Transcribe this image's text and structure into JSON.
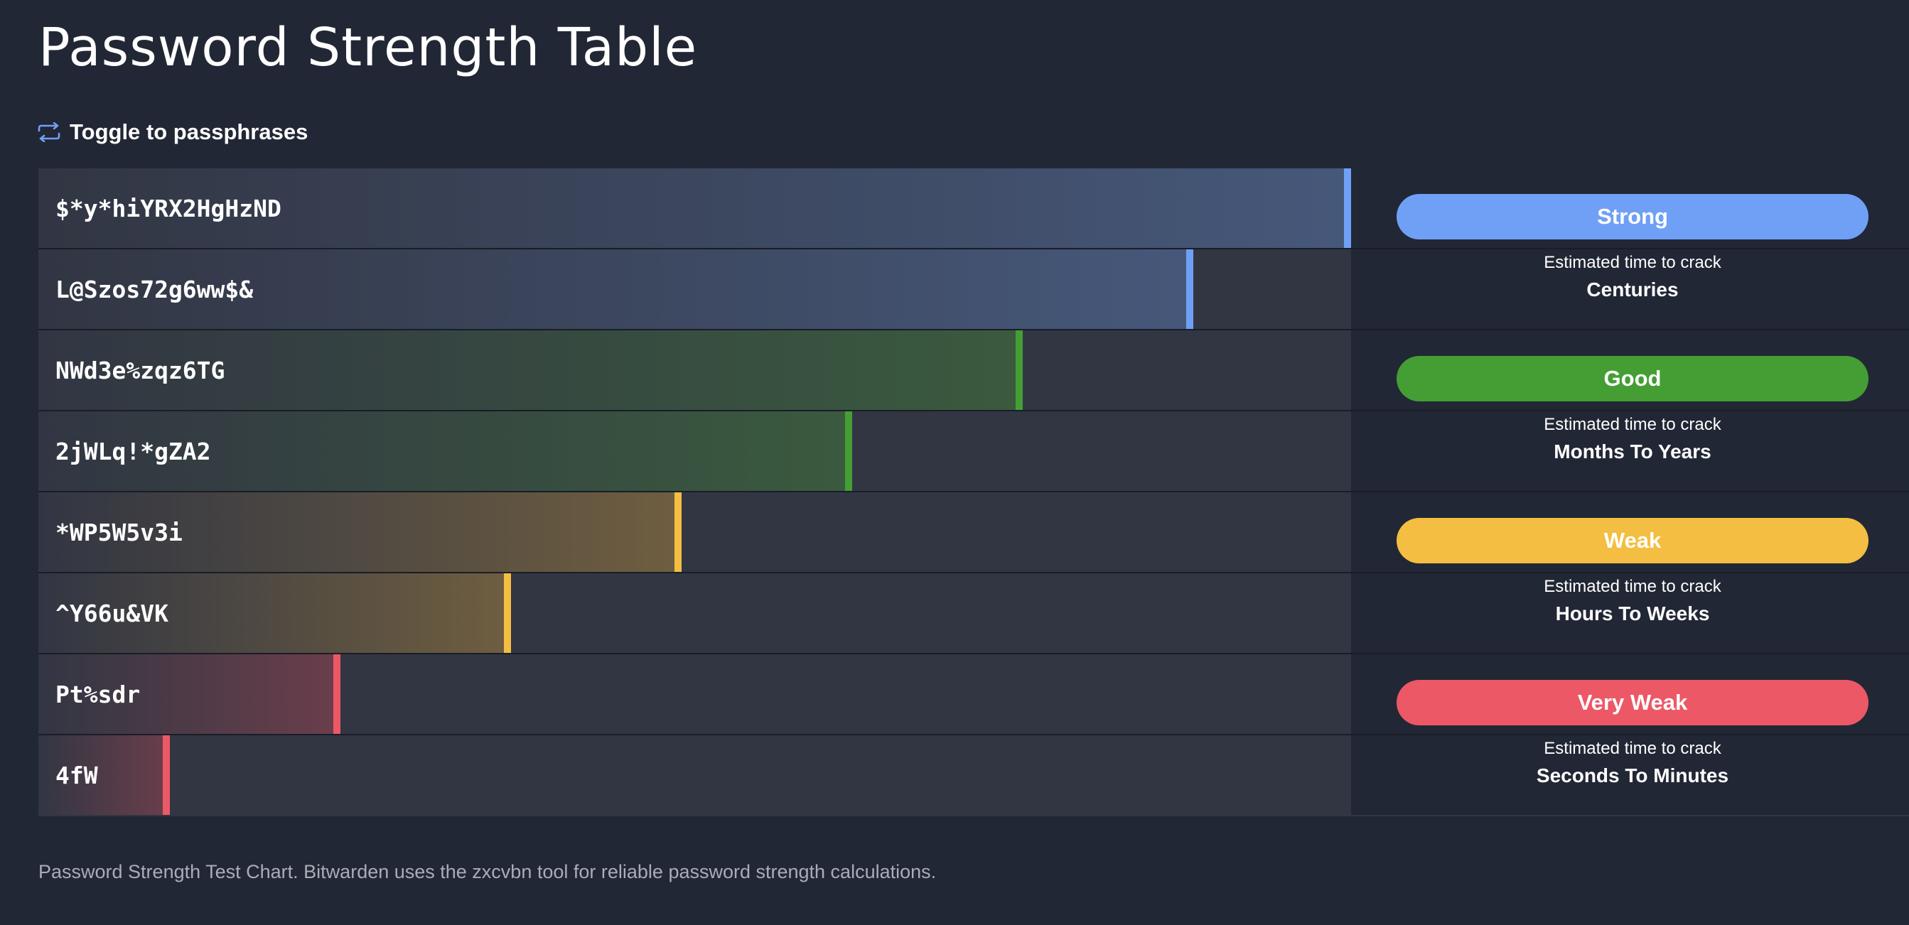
{
  "title": "Password Strength Table",
  "toggle": {
    "label": "Toggle to passphrases",
    "icon": "swap-arrows-icon",
    "color": "#6fa0f5"
  },
  "chart_data": {
    "type": "bar",
    "orientation": "horizontal",
    "categories": [
      "$*y*hiYRX2HgHzND",
      "L@Szos72g6ww$&",
      "NWd3e%zqz6TG",
      "2jWLq!*gZA2",
      "*WP5W5v3i",
      "^Y66u&VK",
      "Pt%sdr",
      "4fW"
    ],
    "values": [
      100,
      88,
      75,
      62,
      49,
      36,
      23,
      10
    ],
    "value_unit": "percent of bar width",
    "series": [
      {
        "name": "Strong",
        "values": [
          100,
          88,
          null,
          null,
          null,
          null,
          null,
          null
        ]
      },
      {
        "name": "Good",
        "values": [
          null,
          null,
          75,
          62,
          null,
          null,
          null,
          null
        ]
      },
      {
        "name": "Weak",
        "values": [
          null,
          null,
          null,
          null,
          49,
          36,
          null,
          null
        ]
      },
      {
        "name": "Very Weak",
        "values": [
          null,
          null,
          null,
          null,
          null,
          null,
          23,
          10
        ]
      }
    ]
  },
  "groups": [
    {
      "name": "Strong",
      "color": "#6fa0f5",
      "fill": "#46587a",
      "ttc_label": "Estimated time to crack",
      "ttc_value": "Centuries"
    },
    {
      "name": "Good",
      "color": "#449e34",
      "fill": "#3a5a3e",
      "ttc_label": "Estimated time to crack",
      "ttc_value": "Months To Years"
    },
    {
      "name": "Weak",
      "color": "#f3be41",
      "fill": "#6f5e40",
      "ttc_label": "Estimated time to crack",
      "ttc_value": "Hours To Weeks"
    },
    {
      "name": "Very Weak",
      "color": "#ec5866",
      "fill": "#6b3e4b",
      "ttc_label": "Estimated time to crack",
      "ttc_value": "Seconds To Minutes"
    }
  ],
  "row_group_index": [
    0,
    0,
    1,
    1,
    2,
    2,
    3,
    3
  ],
  "footer": "Password Strength Test Chart. Bitwarden uses the zxcvbn tool for reliable password strength calculations.",
  "colors": {
    "background": "#222735",
    "row_background": "#323643"
  }
}
